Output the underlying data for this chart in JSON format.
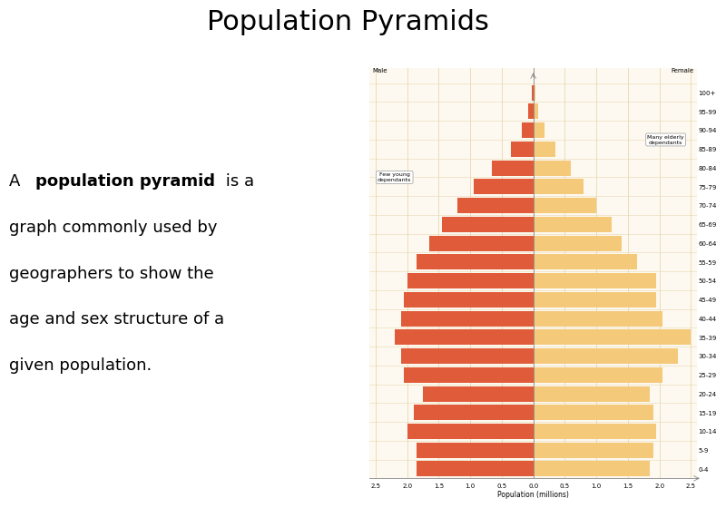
{
  "title": "Population Pyramids",
  "age_groups": [
    "0-4",
    "5-9",
    "10-14",
    "15-19",
    "20-24",
    "25-29",
    "30-34",
    "35-39",
    "40-44",
    "45-49",
    "50-54",
    "55-59",
    "60-64",
    "65-69",
    "70-74",
    "75-79",
    "80-84",
    "85-89",
    "90-94",
    "95-99",
    "100+"
  ],
  "male": [
    1.85,
    1.85,
    2.0,
    1.9,
    1.75,
    2.05,
    2.1,
    2.2,
    2.1,
    2.05,
    2.0,
    1.85,
    1.65,
    1.45,
    1.2,
    0.95,
    0.65,
    0.35,
    0.18,
    0.08,
    0.03
  ],
  "female": [
    1.85,
    1.9,
    1.95,
    1.9,
    1.85,
    2.05,
    2.3,
    2.5,
    2.05,
    1.95,
    1.95,
    1.65,
    1.4,
    1.25,
    1.0,
    0.8,
    0.6,
    0.35,
    0.18,
    0.08,
    0.03
  ],
  "male_color": "#E05B3A",
  "female_color": "#F5C97A",
  "background_color": "#ffffff",
  "chart_bg": "#fdf9f0",
  "grid_color": "#e8d8b0",
  "xlabel": "Population (millions)",
  "xlim": 2.6,
  "annotation_elderly": "Many elderly\ndependants",
  "annotation_young": "Few young\ndependants",
  "title_fontsize": 22,
  "body_fontsize": 13,
  "chart_label_fontsize": 5,
  "chart_xlabel_fontsize": 5.5,
  "annotation_fontsize": 4.5,
  "male_label": "Male",
  "female_label": "Female"
}
